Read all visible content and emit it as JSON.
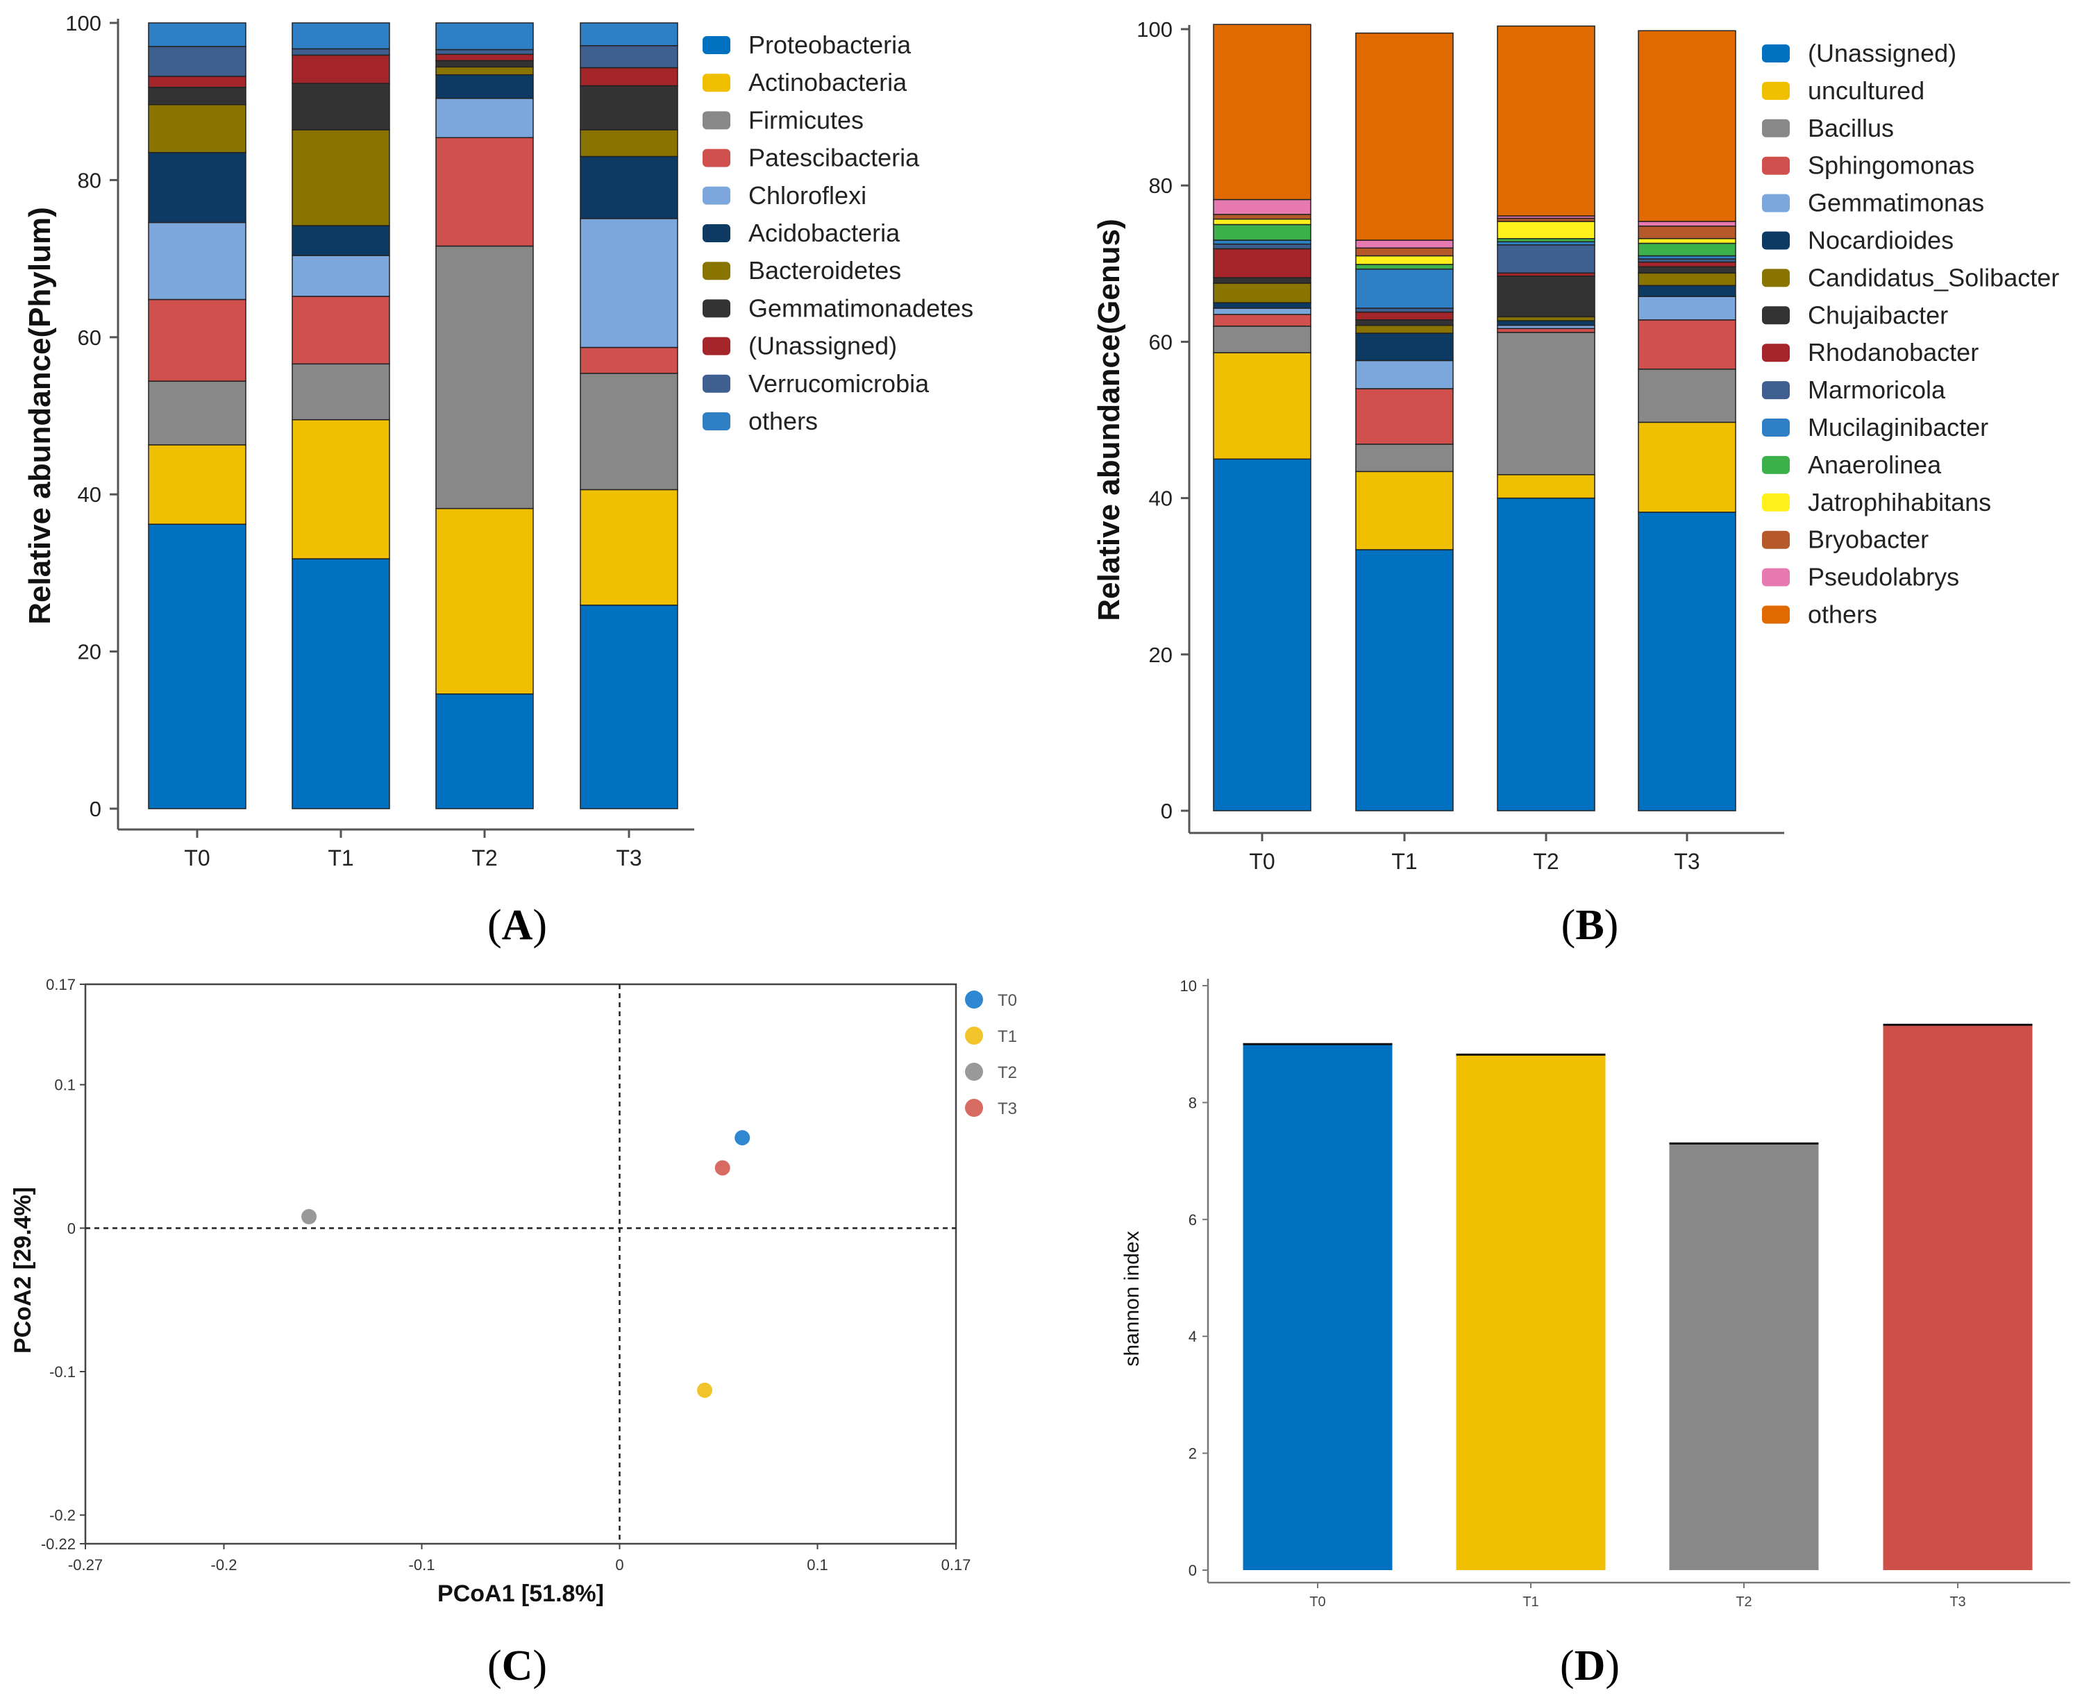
{
  "chart_data": [
    {
      "panel": "A",
      "type": "bar",
      "stacked": true,
      "categories": [
        "T0",
        "T1",
        "T2",
        "T3"
      ],
      "ylabel": "Relative abundance(Phylum)",
      "xlabel": "",
      "ylim": [
        0,
        100
      ],
      "yticks": [
        "0",
        "20",
        "40",
        "60",
        "80",
        "100"
      ],
      "legend_position": "right",
      "series": [
        {
          "name": "Proteobacteria",
          "color": "#0070c0",
          "values": [
            36.2,
            31.8,
            14.6,
            25.9
          ]
        },
        {
          "name": "Actinobacteria",
          "color": "#f0c000",
          "values": [
            10.1,
            17.7,
            23.6,
            14.7
          ]
        },
        {
          "name": "Firmicutes",
          "color": "#888888",
          "values": [
            8.1,
            7.1,
            33.4,
            14.8
          ]
        },
        {
          "name": "Patescibacteria",
          "color": "#d0504d",
          "values": [
            10.4,
            8.6,
            13.8,
            3.3
          ]
        },
        {
          "name": "Chloroflexi",
          "color": "#7ba7dd",
          "values": [
            9.8,
            5.2,
            5.0,
            16.4
          ]
        },
        {
          "name": "Acidobacteria",
          "color": "#0d3a63",
          "values": [
            8.9,
            3.8,
            3.0,
            7.9
          ]
        },
        {
          "name": "Bacteroidetes",
          "color": "#8a7400",
          "values": [
            6.1,
            12.2,
            1.0,
            3.4
          ]
        },
        {
          "name": "Gemmatimonadetes",
          "color": "#333333",
          "values": [
            2.2,
            5.9,
            0.8,
            5.6
          ]
        },
        {
          "name": "(Unassigned)",
          "color": "#a5262a",
          "values": [
            1.4,
            3.6,
            0.8,
            2.3
          ]
        },
        {
          "name": "Verrucomicrobia",
          "color": "#3e5f8f",
          "values": [
            3.8,
            0.8,
            0.6,
            2.8
          ]
        },
        {
          "name": "others",
          "color": "#2f7fc5",
          "values": [
            3.0,
            3.3,
            3.4,
            2.9
          ]
        }
      ]
    },
    {
      "panel": "B",
      "type": "bar",
      "stacked": true,
      "categories": [
        "T0",
        "T1",
        "T2",
        "T3"
      ],
      "ylabel": "Relative abundance(Genus)",
      "xlabel": "",
      "ylim": [
        0,
        100
      ],
      "yticks": [
        "0",
        "20",
        "40",
        "60",
        "80",
        "100"
      ],
      "legend_position": "right",
      "series": [
        {
          "name": "(Unassigned)",
          "color": "#0070c0",
          "values": [
            45.0,
            33.4,
            40.0,
            38.2
          ]
        },
        {
          "name": "uncultured",
          "color": "#f0c000",
          "values": [
            13.6,
            10.0,
            3.0,
            11.5
          ]
        },
        {
          "name": "Bacillus",
          "color": "#888888",
          "values": [
            3.4,
            3.5,
            18.2,
            6.8
          ]
        },
        {
          "name": "Sphingomonas",
          "color": "#d0504d",
          "values": [
            1.5,
            7.1,
            0.5,
            6.3
          ]
        },
        {
          "name": "Gemmatimonas",
          "color": "#7ba7dd",
          "values": [
            0.8,
            3.6,
            0.4,
            3.0
          ]
        },
        {
          "name": "Nocardioides",
          "color": "#0d3a63",
          "values": [
            0.7,
            3.5,
            0.6,
            1.4
          ]
        },
        {
          "name": "Candidatus_Solibacter",
          "color": "#8a7400",
          "values": [
            2.5,
            1.0,
            0.5,
            1.6
          ]
        },
        {
          "name": "Chujaibacter",
          "color": "#333333",
          "values": [
            0.7,
            0.7,
            5.2,
            0.8
          ]
        },
        {
          "name": "Rhodanobacter",
          "color": "#a5262a",
          "values": [
            3.7,
            1.0,
            0.4,
            0.6
          ]
        },
        {
          "name": "Marmoricola",
          "color": "#3e5f8f",
          "values": [
            0.6,
            0.5,
            3.6,
            0.4
          ]
        },
        {
          "name": "Mucilaginibacter",
          "color": "#2f7fc5",
          "values": [
            0.5,
            5.0,
            0.4,
            0.4
          ]
        },
        {
          "name": "Anaerolinea",
          "color": "#3cb04a",
          "values": [
            2.0,
            0.6,
            0.4,
            1.6
          ]
        },
        {
          "name": "Jatrophihabitans",
          "color": "#ffef1a",
          "values": [
            0.7,
            1.1,
            2.2,
            0.6
          ]
        },
        {
          "name": "Bryobacter",
          "color": "#b5592b",
          "values": [
            0.6,
            1.0,
            0.4,
            1.6
          ]
        },
        {
          "name": "Pseudolabrys",
          "color": "#e67ab0",
          "values": [
            1.9,
            1.0,
            0.3,
            0.6
          ]
        },
        {
          "name": "others",
          "color": "#e06a00",
          "values": [
            22.4,
            26.5,
            24.3,
            24.4
          ]
        }
      ]
    },
    {
      "panel": "C",
      "type": "scatter",
      "xlabel": "PCoA1 [51.8%]",
      "ylabel": "PCoA2 [29.4%]",
      "xlim": [
        -0.27,
        0.17
      ],
      "ylim": [
        -0.22,
        0.17
      ],
      "xticks": [
        "-0.27",
        "-0.2",
        "-0.1",
        "0",
        "0.1",
        "0.17"
      ],
      "yticks": [
        "-0.22",
        "-0.2",
        "-0.1",
        "0",
        "0.1",
        "0.17"
      ],
      "legend_position": "top-right",
      "reference_lines": "dashed lines at x=0 and y=0",
      "points": [
        {
          "name": "T0",
          "color": "#2f86d1",
          "x": 0.062,
          "y": 0.063
        },
        {
          "name": "T1",
          "color": "#f2c42c",
          "x": 0.043,
          "y": -0.113
        },
        {
          "name": "T2",
          "color": "#999999",
          "x": -0.157,
          "y": 0.008
        },
        {
          "name": "T3",
          "color": "#d76b62",
          "x": 0.052,
          "y": 0.042
        }
      ]
    },
    {
      "panel": "D",
      "type": "bar",
      "categories": [
        "T0",
        "T1",
        "T2",
        "T3"
      ],
      "values": [
        9.0,
        8.82,
        7.3,
        9.33
      ],
      "colors": [
        "#0070c0",
        "#f0c000",
        "#888888",
        "#cd4f4a"
      ],
      "ylabel": "shannon index",
      "xlabel": "",
      "ylim": [
        0,
        10
      ],
      "yticks": [
        "0",
        "2",
        "4",
        "6",
        "8",
        "10"
      ]
    }
  ],
  "panel_labels": {
    "A": {
      "open": "(",
      "letter": "A",
      "close": ")"
    },
    "B": {
      "open": "(",
      "letter": "B",
      "close": ")"
    },
    "C": {
      "open": "(",
      "letter": "C",
      "close": ")"
    },
    "D": {
      "open": "(",
      "letter": "D",
      "close": ")"
    }
  }
}
